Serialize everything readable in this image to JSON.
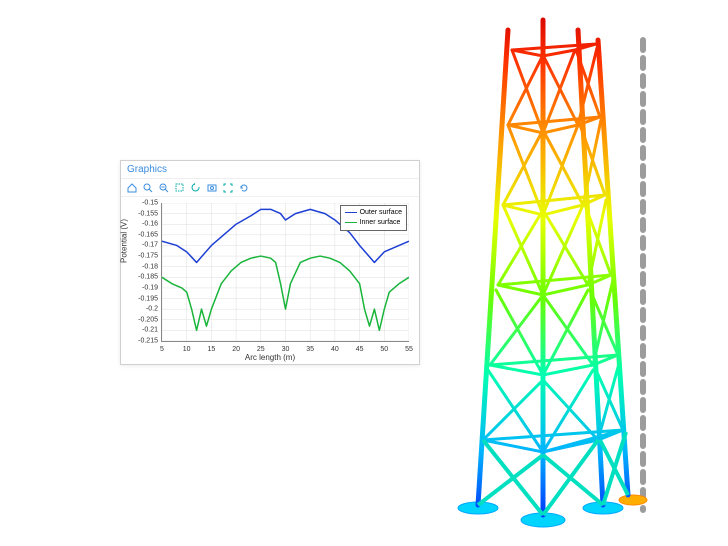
{
  "colors": {
    "window_border": "#d0d0d0",
    "title_color": "#3a8dde",
    "grid": "#dddddd",
    "axis": "#888888"
  },
  "chart": {
    "title": "Graphics",
    "type": "line",
    "xlabel": "Arc length (m)",
    "ylabel": "Potential (V)",
    "xlim": [
      5,
      55
    ],
    "ylim": [
      -0.215,
      -0.15
    ],
    "xticks": [
      5,
      10,
      15,
      20,
      25,
      30,
      35,
      40,
      45,
      50,
      55
    ],
    "yticks": [
      -0.15,
      -0.155,
      -0.16,
      -0.165,
      -0.17,
      -0.175,
      -0.18,
      -0.185,
      -0.19,
      -0.195,
      -0.2,
      -0.205,
      -0.21,
      -0.215
    ],
    "legend": {
      "items": [
        {
          "label": "Outer surface",
          "color": "#1d3fd4"
        },
        {
          "label": "Inner surface",
          "color": "#18b53a"
        }
      ],
      "position": "top-right",
      "border": "#666666"
    },
    "series": [
      {
        "name": "Outer surface",
        "color": "#1d3fd4",
        "line_width": 1.5,
        "x": [
          5,
          8,
          10,
          12,
          15,
          18,
          20,
          23,
          25,
          27,
          29,
          30,
          32,
          35,
          38,
          40,
          43,
          45,
          48,
          50,
          53,
          55
        ],
        "y": [
          -0.168,
          -0.17,
          -0.173,
          -0.178,
          -0.17,
          -0.164,
          -0.16,
          -0.156,
          -0.153,
          -0.153,
          -0.155,
          -0.158,
          -0.155,
          -0.153,
          -0.155,
          -0.158,
          -0.164,
          -0.17,
          -0.178,
          -0.173,
          -0.17,
          -0.168
        ]
      },
      {
        "name": "Inner surface",
        "color": "#18b53a",
        "line_width": 1.5,
        "x": [
          5,
          7,
          9,
          10,
          11,
          12,
          13,
          14,
          15,
          17,
          19,
          21,
          23,
          25,
          27,
          28,
          29,
          30,
          31,
          33,
          35,
          37,
          39,
          41,
          43,
          45,
          46,
          47,
          48,
          49,
          50,
          51,
          53,
          55
        ],
        "y": [
          -0.185,
          -0.188,
          -0.19,
          -0.192,
          -0.2,
          -0.21,
          -0.2,
          -0.208,
          -0.2,
          -0.188,
          -0.182,
          -0.178,
          -0.176,
          -0.175,
          -0.176,
          -0.178,
          -0.188,
          -0.2,
          -0.188,
          -0.178,
          -0.176,
          -0.175,
          -0.176,
          -0.178,
          -0.182,
          -0.188,
          -0.2,
          -0.208,
          -0.2,
          -0.21,
          -0.2,
          -0.192,
          -0.188,
          -0.185
        ]
      }
    ],
    "title_fontsize": 10,
    "label_fontsize": 8,
    "tick_fontsize": 7,
    "background_color": "#ffffff"
  },
  "toolbar_icons": [
    "home",
    "zoom-in",
    "zoom-out",
    "select",
    "rotate",
    "snapshot",
    "expand",
    "refresh"
  ],
  "toolbar_colors": [
    "#3a8dde",
    "#3a8dde",
    "#3a8dde",
    "#0aa",
    "#0aa",
    "#3a8dde",
    "#0aa",
    "#3a8dde"
  ],
  "tower": {
    "type": "truss-3d",
    "colormap": "rainbow",
    "colormap_stops": [
      {
        "t": 0.0,
        "color": "#0018ff"
      },
      {
        "t": 0.15,
        "color": "#00b4ff"
      },
      {
        "t": 0.3,
        "color": "#00ffb0"
      },
      {
        "t": 0.45,
        "color": "#6cff00"
      },
      {
        "t": 0.6,
        "color": "#e8ff00"
      },
      {
        "t": 0.75,
        "color": "#ff9c00"
      },
      {
        "t": 0.9,
        "color": "#ff3200"
      },
      {
        "t": 1.0,
        "color": "#d40000"
      }
    ],
    "bay_count": 6,
    "base_feet": 4,
    "stroke_width_main": 5,
    "stroke_width_brace": 3,
    "foot_color": "#00a8ff",
    "pipe_dashes": {
      "color": "#9c9c9c",
      "dash": "6 6",
      "width": 6
    }
  }
}
